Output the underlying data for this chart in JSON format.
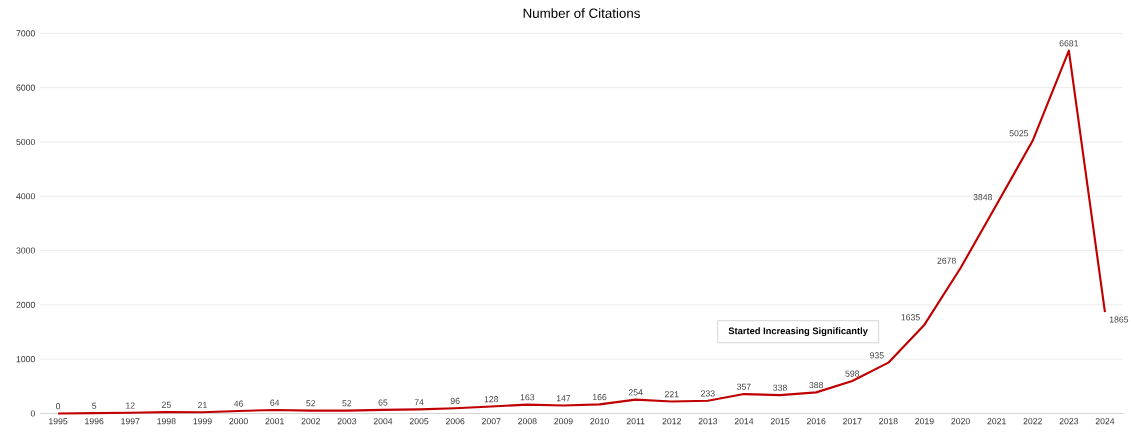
{
  "chart_data": {
    "type": "line",
    "title": "Number of Citations",
    "categories": [
      "1995",
      "1996",
      "1997",
      "1998",
      "1999",
      "2000",
      "2001",
      "2002",
      "2003",
      "2004",
      "2005",
      "2006",
      "2007",
      "2008",
      "2009",
      "2010",
      "2011",
      "2012",
      "2013",
      "2014",
      "2015",
      "2016",
      "2017",
      "2018",
      "2019",
      "2020",
      "2021",
      "2022",
      "2023",
      "2024"
    ],
    "values": [
      0,
      5,
      12,
      25,
      21,
      46,
      64,
      52,
      52,
      65,
      74,
      96,
      128,
      163,
      147,
      166,
      254,
      221,
      233,
      357,
      338,
      388,
      598,
      935,
      1635,
      2678,
      3848,
      5025,
      6681,
      1865
    ],
    "color": "#c00000",
    "ylim": [
      0,
      7000
    ],
    "yticks": [
      0,
      1000,
      2000,
      3000,
      4000,
      5000,
      6000,
      7000
    ],
    "grid": "y",
    "marker": "none",
    "line_style": "solid",
    "data_labels": true,
    "annotations": [
      "Started Increasing Significantly"
    ]
  }
}
